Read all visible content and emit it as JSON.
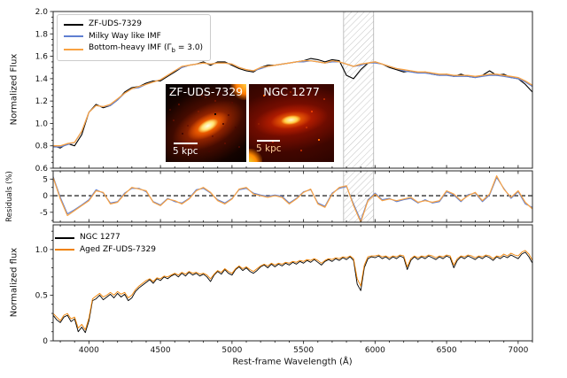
{
  "chart_data": [
    {
      "type": "line",
      "panel": "top",
      "ylabel": "Normalized Flux",
      "ylim": [
        0.6,
        2.0
      ],
      "yticks": [
        0.6,
        0.8,
        1.0,
        1.2,
        1.4,
        1.6,
        1.8,
        2.0
      ],
      "xlim": [
        3750,
        7100
      ],
      "masked_region": {
        "xmin": 5780,
        "xmax": 5990,
        "style": "hatched"
      },
      "legend": {
        "position": "upper-left",
        "entries": [
          {
            "label": "ZF-UDS-7329",
            "color": "#000000"
          },
          {
            "label": "Milky Way like IMF",
            "color": "#5f7fd1"
          },
          {
            "label_prefix": "Bottom-heavy IMF (Γ",
            "label_sub": "b",
            "label_suffix": " = 3.0)",
            "color": "#f9a242"
          }
        ]
      },
      "x_start": 3750,
      "x_step": 50,
      "series": [
        {
          "name": "ZF-UDS-7329",
          "color": "#000000",
          "width": 1.1,
          "values": [
            0.8,
            0.78,
            0.82,
            0.8,
            0.9,
            1.1,
            1.17,
            1.14,
            1.16,
            1.21,
            1.28,
            1.32,
            1.33,
            1.36,
            1.38,
            1.38,
            1.42,
            1.46,
            1.5,
            1.52,
            1.53,
            1.55,
            1.52,
            1.55,
            1.55,
            1.52,
            1.49,
            1.47,
            1.46,
            1.5,
            1.52,
            1.52,
            1.53,
            1.54,
            1.55,
            1.56,
            1.58,
            1.57,
            1.55,
            1.57,
            1.56,
            1.43,
            1.4,
            1.48,
            1.54,
            1.55,
            1.53,
            1.5,
            1.48,
            1.46,
            1.47,
            1.45,
            1.46,
            1.44,
            1.43,
            1.44,
            1.42,
            1.44,
            1.42,
            1.41,
            1.43,
            1.47,
            1.43,
            1.44,
            1.41,
            1.4,
            1.35,
            1.28
          ]
        },
        {
          "name": "Milky Way like IMF",
          "color": "#5f7fd1",
          "width": 1.2,
          "values": [
            0.79,
            0.79,
            0.81,
            0.83,
            0.93,
            1.1,
            1.16,
            1.15,
            1.16,
            1.21,
            1.27,
            1.31,
            1.32,
            1.35,
            1.37,
            1.39,
            1.43,
            1.47,
            1.5,
            1.52,
            1.53,
            1.54,
            1.53,
            1.54,
            1.54,
            1.53,
            1.5,
            1.48,
            1.47,
            1.49,
            1.51,
            1.52,
            1.53,
            1.54,
            1.55,
            1.55,
            1.56,
            1.55,
            1.54,
            1.55,
            1.55,
            1.53,
            1.51,
            1.52,
            1.54,
            1.54,
            1.53,
            1.51,
            1.49,
            1.47,
            1.46,
            1.45,
            1.45,
            1.44,
            1.43,
            1.43,
            1.42,
            1.42,
            1.42,
            1.41,
            1.42,
            1.43,
            1.43,
            1.42,
            1.41,
            1.4,
            1.37,
            1.33
          ]
        },
        {
          "name": "Bottom-heavy IMF (Gamma_b = 3.0)",
          "color": "#f9a242",
          "width": 1.3,
          "values": [
            0.8,
            0.8,
            0.82,
            0.83,
            0.93,
            1.1,
            1.16,
            1.15,
            1.17,
            1.22,
            1.27,
            1.31,
            1.33,
            1.35,
            1.37,
            1.39,
            1.43,
            1.47,
            1.51,
            1.52,
            1.53,
            1.54,
            1.53,
            1.54,
            1.54,
            1.53,
            1.5,
            1.48,
            1.47,
            1.5,
            1.51,
            1.52,
            1.53,
            1.54,
            1.55,
            1.56,
            1.56,
            1.55,
            1.54,
            1.56,
            1.55,
            1.53,
            1.51,
            1.53,
            1.54,
            1.55,
            1.53,
            1.51,
            1.49,
            1.48,
            1.47,
            1.46,
            1.46,
            1.45,
            1.44,
            1.44,
            1.43,
            1.43,
            1.43,
            1.42,
            1.43,
            1.44,
            1.44,
            1.43,
            1.42,
            1.41,
            1.38,
            1.34
          ]
        }
      ]
    },
    {
      "type": "line",
      "panel": "middle",
      "ylabel": "Residuals (%)",
      "ylim": [
        -8,
        7.5
      ],
      "yticks": [
        -5,
        0,
        5
      ],
      "xlim": [
        3750,
        7100
      ],
      "zero_line": true,
      "masked_region": {
        "xmin": 5780,
        "xmax": 5990,
        "style": "hatched"
      },
      "x_start": 3750,
      "x_step": 50,
      "series": [
        {
          "name": "Milky Way like IMF residual",
          "color": "#5f7fd1",
          "width": 1.1,
          "values": [
            5.8,
            -0.5,
            -5.5,
            -4.2,
            -2.8,
            -1.2,
            1.8,
            0.8,
            -2.2,
            -1.8,
            0.8,
            2.2,
            2.2,
            1.2,
            -1.8,
            -2.8,
            -0.8,
            -1.8,
            -2.2,
            -0.8,
            1.8,
            2.2,
            0.8,
            -1.2,
            -2.2,
            -0.8,
            1.8,
            2.2,
            0.8,
            0.2,
            -0.2,
            0.2,
            -0.2,
            -2.2,
            -0.8,
            1.2,
            1.8,
            -2.2,
            -3.2,
            0.8,
            2.2,
            2.8,
            -2.5,
            -7.5,
            -1.2,
            0.8,
            -1.2,
            -0.8,
            -1.8,
            -1.2,
            -0.8,
            -2.2,
            -1.2,
            -2.2,
            -1.8,
            1.2,
            0.2,
            -1.8,
            0.3,
            0.8,
            -1.8,
            0.2,
            5.5,
            2.2,
            -0.8,
            1.2,
            -2.5,
            -3.5
          ]
        },
        {
          "name": "Bottom-heavy IMF residual",
          "color": "#f9a242",
          "width": 1.2,
          "values": [
            5.5,
            -1.0,
            -6.0,
            -4.5,
            -3.0,
            -1.5,
            1.5,
            1.0,
            -2.5,
            -2.0,
            0.5,
            2.5,
            2.0,
            1.5,
            -2.0,
            -3.0,
            -1.0,
            -1.5,
            -2.5,
            -1.0,
            1.5,
            2.5,
            1.0,
            -1.5,
            -2.5,
            -1.0,
            2.0,
            2.5,
            0.5,
            0.0,
            -0.5,
            0.0,
            -0.5,
            -2.5,
            -1.0,
            1.0,
            2.0,
            -2.5,
            -3.5,
            0.5,
            2.5,
            3.0,
            -3.0,
            -8.0,
            -1.5,
            0.5,
            -1.5,
            -1.0,
            -1.5,
            -1.0,
            -0.5,
            -2.0,
            -1.5,
            -2.0,
            -1.5,
            1.5,
            0.5,
            -1.5,
            0.0,
            1.0,
            -1.5,
            0.5,
            6.0,
            2.0,
            -0.5,
            1.5,
            -2.0,
            -4.0
          ]
        }
      ]
    },
    {
      "type": "line",
      "panel": "bottom",
      "ylabel": "Normalized flux",
      "xlabel": "Rest-frame Wavelength (Å)",
      "ylim": [
        0,
        1.27
      ],
      "yticks": [
        0,
        0.5,
        1.0
      ],
      "xlim": [
        3750,
        7100
      ],
      "xticks": [
        4000,
        4500,
        5000,
        5500,
        6000,
        6500,
        7000
      ],
      "legend": {
        "position": "upper-left",
        "entries": [
          {
            "label": "NGC 1277",
            "color": "#000000"
          },
          {
            "label": "Aged ZF-UDS-7329",
            "color": "#ef8100"
          }
        ]
      },
      "x_start": 3750,
      "x_step": 25,
      "series": [
        {
          "name": "NGC 1277",
          "color": "#000000",
          "width": 0.9,
          "values": [
            0.28,
            0.23,
            0.2,
            0.26,
            0.28,
            0.21,
            0.24,
            0.1,
            0.15,
            0.09,
            0.22,
            0.44,
            0.46,
            0.5,
            0.45,
            0.48,
            0.51,
            0.47,
            0.52,
            0.48,
            0.51,
            0.44,
            0.47,
            0.54,
            0.58,
            0.61,
            0.64,
            0.67,
            0.63,
            0.68,
            0.66,
            0.7,
            0.68,
            0.71,
            0.73,
            0.7,
            0.74,
            0.71,
            0.75,
            0.72,
            0.74,
            0.71,
            0.73,
            0.7,
            0.65,
            0.72,
            0.76,
            0.73,
            0.78,
            0.74,
            0.72,
            0.78,
            0.81,
            0.77,
            0.8,
            0.76,
            0.74,
            0.77,
            0.81,
            0.83,
            0.8,
            0.84,
            0.81,
            0.84,
            0.82,
            0.85,
            0.83,
            0.86,
            0.84,
            0.87,
            0.85,
            0.88,
            0.86,
            0.89,
            0.86,
            0.83,
            0.87,
            0.89,
            0.87,
            0.9,
            0.88,
            0.91,
            0.89,
            0.92,
            0.88,
            0.62,
            0.55,
            0.8,
            0.9,
            0.92,
            0.91,
            0.93,
            0.9,
            0.92,
            0.89,
            0.92,
            0.9,
            0.93,
            0.91,
            0.78,
            0.88,
            0.92,
            0.89,
            0.92,
            0.9,
            0.93,
            0.91,
            0.89,
            0.92,
            0.9,
            0.93,
            0.91,
            0.8,
            0.88,
            0.92,
            0.9,
            0.93,
            0.91,
            0.89,
            0.92,
            0.9,
            0.93,
            0.91,
            0.88,
            0.92,
            0.9,
            0.93,
            0.91,
            0.94,
            0.92,
            0.9,
            0.95,
            0.97,
            0.92,
            0.85
          ]
        },
        {
          "name": "Aged ZF-UDS-7329",
          "color": "#ef8100",
          "width": 0.9,
          "values": [
            0.3,
            0.26,
            0.22,
            0.28,
            0.3,
            0.24,
            0.26,
            0.14,
            0.18,
            0.12,
            0.25,
            0.46,
            0.49,
            0.52,
            0.48,
            0.5,
            0.53,
            0.5,
            0.54,
            0.51,
            0.53,
            0.47,
            0.5,
            0.56,
            0.6,
            0.63,
            0.66,
            0.68,
            0.65,
            0.69,
            0.68,
            0.71,
            0.7,
            0.72,
            0.74,
            0.72,
            0.75,
            0.73,
            0.76,
            0.74,
            0.75,
            0.73,
            0.74,
            0.72,
            0.68,
            0.73,
            0.77,
            0.75,
            0.79,
            0.76,
            0.74,
            0.79,
            0.82,
            0.79,
            0.81,
            0.78,
            0.76,
            0.79,
            0.82,
            0.84,
            0.82,
            0.85,
            0.83,
            0.85,
            0.84,
            0.86,
            0.85,
            0.87,
            0.86,
            0.88,
            0.87,
            0.89,
            0.88,
            0.9,
            0.88,
            0.85,
            0.88,
            0.9,
            0.89,
            0.91,
            0.9,
            0.92,
            0.91,
            0.93,
            0.9,
            0.68,
            0.6,
            0.83,
            0.92,
            0.93,
            0.93,
            0.94,
            0.92,
            0.93,
            0.91,
            0.93,
            0.92,
            0.94,
            0.93,
            0.81,
            0.9,
            0.93,
            0.91,
            0.93,
            0.92,
            0.94,
            0.93,
            0.91,
            0.93,
            0.92,
            0.94,
            0.93,
            0.83,
            0.9,
            0.93,
            0.92,
            0.94,
            0.93,
            0.91,
            0.93,
            0.92,
            0.94,
            0.93,
            0.9,
            0.93,
            0.92,
            0.95,
            0.93,
            0.96,
            0.94,
            0.93,
            0.97,
            0.99,
            0.95,
            0.88
          ]
        }
      ]
    }
  ],
  "insets": {
    "left": {
      "title": "ZF-UDS-7329",
      "scalebar_label": "5 kpc"
    },
    "right": {
      "title": "NGC 1277",
      "scalebar_label": "5 kpc"
    }
  }
}
